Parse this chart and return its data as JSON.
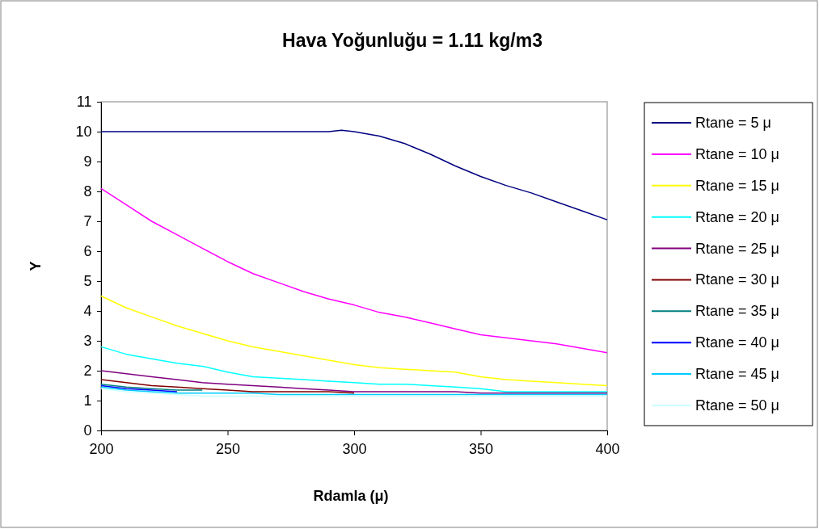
{
  "chart_data": {
    "type": "line",
    "title": "Hava Yoğunluğu = 1.11 kg/m3",
    "xlabel": "Rdamla (μ)",
    "ylabel": "Y",
    "x": [
      200,
      210,
      220,
      230,
      240,
      250,
      260,
      270,
      280,
      290,
      300,
      310,
      320,
      330,
      340,
      350,
      360,
      370,
      380,
      390,
      400
    ],
    "xlim": [
      200,
      400
    ],
    "xticks": [
      200,
      250,
      300,
      350,
      400
    ],
    "ylim": [
      0,
      11
    ],
    "yticks": [
      0,
      1,
      2,
      3,
      4,
      5,
      6,
      7,
      8,
      9,
      10,
      11
    ],
    "grid": false,
    "legend": "right",
    "marker": "none",
    "line_style": "solid",
    "series": [
      {
        "name": "Rtane = 5 μ",
        "color": "#000080",
        "x": [
          200,
          210,
          220,
          230,
          240,
          250,
          260,
          270,
          280,
          290,
          295,
          300,
          310,
          320,
          330,
          340,
          350,
          360,
          370,
          380,
          390,
          400
        ],
        "values": [
          10,
          10,
          10,
          10,
          10,
          10,
          10,
          10,
          10,
          10,
          10.05,
          10,
          9.85,
          9.6,
          9.25,
          8.85,
          8.5,
          8.2,
          7.95,
          7.65,
          7.35,
          7.05
        ]
      },
      {
        "name": "Rtane = 10 μ",
        "color": "#ff00ff",
        "values": [
          8.1,
          7.55,
          7.0,
          6.55,
          6.1,
          5.65,
          5.25,
          4.95,
          4.65,
          4.4,
          4.2,
          3.95,
          3.8,
          3.6,
          3.4,
          3.2,
          3.1,
          3.0,
          2.9,
          2.75,
          2.6
        ]
      },
      {
        "name": "Rtane = 15 μ",
        "color": "#ffff00",
        "values": [
          4.5,
          4.1,
          3.8,
          3.5,
          3.25,
          3.0,
          2.8,
          2.65,
          2.5,
          2.35,
          2.2,
          2.1,
          2.05,
          2.0,
          1.95,
          1.8,
          1.7,
          1.65,
          1.6,
          1.55,
          1.5
        ]
      },
      {
        "name": "Rtane = 20 μ",
        "color": "#00ffff",
        "values": [
          2.8,
          2.55,
          2.4,
          2.25,
          2.15,
          1.95,
          1.8,
          1.75,
          1.7,
          1.65,
          1.6,
          1.55,
          1.55,
          1.5,
          1.45,
          1.4,
          1.3,
          1.3,
          1.3,
          1.3,
          1.3
        ]
      },
      {
        "name": "Rtane = 25 μ",
        "color": "#800080",
        "values": [
          2.0,
          1.9,
          1.8,
          1.7,
          1.6,
          1.55,
          1.5,
          1.45,
          1.4,
          1.35,
          1.3,
          1.3,
          1.3,
          1.3,
          1.3,
          1.25,
          1.25,
          1.25,
          1.25,
          1.25,
          1.25
        ]
      },
      {
        "name": "Rtane = 30 μ",
        "color": "#800000",
        "values": [
          1.7,
          1.6,
          1.5,
          1.45,
          1.4,
          1.35,
          1.3,
          1.3,
          1.3,
          1.3,
          1.25,
          null,
          null,
          null,
          null,
          null,
          null,
          null,
          null,
          null,
          null
        ]
      },
      {
        "name": "Rtane = 35 μ",
        "color": "#008080",
        "values": [
          1.55,
          1.45,
          1.4,
          1.35,
          1.35,
          null,
          null,
          null,
          null,
          null,
          null,
          null,
          null,
          null,
          null,
          null,
          null,
          null,
          null,
          null,
          null
        ]
      },
      {
        "name": "Rtane = 40 μ",
        "color": "#0000ff",
        "values": [
          1.5,
          1.4,
          1.35,
          1.3,
          null,
          null,
          null,
          null,
          null,
          null,
          null,
          null,
          null,
          null,
          null,
          null,
          null,
          null,
          null,
          null,
          null
        ]
      },
      {
        "name": "Rtane = 45 μ",
        "color": "#00ccff",
        "values": [
          1.45,
          1.35,
          1.3,
          1.25,
          1.25,
          1.25,
          1.25,
          1.2,
          1.2,
          1.2,
          1.2,
          1.2,
          1.2,
          1.2,
          1.2,
          1.2,
          1.2,
          1.2,
          1.2,
          1.2,
          1.2
        ]
      },
      {
        "name": "Rtane = 50 μ",
        "color": "#ccffff",
        "values": [
          1.4,
          1.3,
          1.25,
          1.2,
          1.15,
          1.15,
          1.15,
          1.15,
          1.15,
          1.15,
          1.15,
          1.15,
          1.15,
          1.15,
          1.15,
          1.15,
          1.15,
          1.15,
          1.15,
          1.15,
          1.15
        ]
      }
    ]
  }
}
